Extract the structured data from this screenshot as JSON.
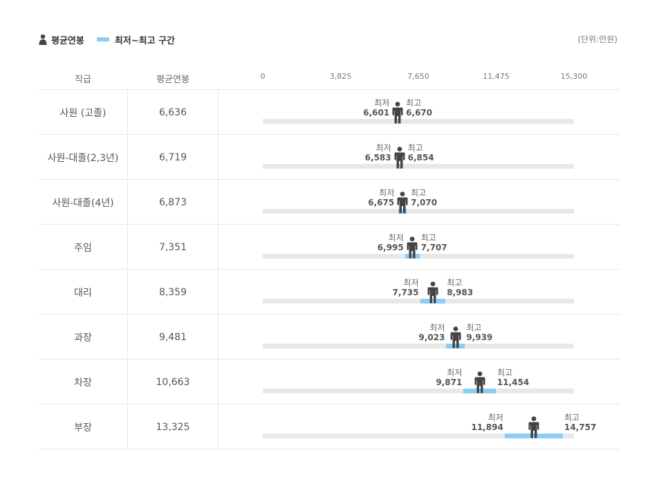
{
  "legend": {
    "avg_label": "평균연봉",
    "range_label": "최저~최고 구간",
    "unit": "(단위:만원)"
  },
  "header": {
    "rank": "직급",
    "avg": "평균연봉"
  },
  "caption_min": "최저",
  "caption_max": "최고",
  "colors": {
    "range": "#8ecbf5",
    "track": "#e8e8e8",
    "person": "#444444"
  },
  "chart_data": {
    "type": "range-bar",
    "xlim": [
      0,
      15300
    ],
    "ticks": [
      "0",
      "3,825",
      "7,650",
      "11,475",
      "15,300"
    ],
    "tick_values": [
      0,
      3825,
      7650,
      11475,
      15300
    ],
    "rows": [
      {
        "rank": "사원 (고졸)",
        "avg": 6636,
        "avg_text": "6,636",
        "min": 6601,
        "min_text": "6,601",
        "max": 6670,
        "max_text": "6,670"
      },
      {
        "rank": "사원-대졸(2,3년)",
        "avg": 6719,
        "avg_text": "6,719",
        "min": 6583,
        "min_text": "6,583",
        "max": 6854,
        "max_text": "6,854"
      },
      {
        "rank": "사원-대졸(4년)",
        "avg": 6873,
        "avg_text": "6,873",
        "min": 6675,
        "min_text": "6,675",
        "max": 7070,
        "max_text": "7,070"
      },
      {
        "rank": "주임",
        "avg": 7351,
        "avg_text": "7,351",
        "min": 6995,
        "min_text": "6,995",
        "max": 7707,
        "max_text": "7,707"
      },
      {
        "rank": "대리",
        "avg": 8359,
        "avg_text": "8,359",
        "min": 7735,
        "min_text": "7,735",
        "max": 8983,
        "max_text": "8,983"
      },
      {
        "rank": "과장",
        "avg": 9481,
        "avg_text": "9,481",
        "min": 9023,
        "min_text": "9,023",
        "max": 9939,
        "max_text": "9,939"
      },
      {
        "rank": "차장",
        "avg": 10663,
        "avg_text": "10,663",
        "min": 9871,
        "min_text": "9,871",
        "max": 11454,
        "max_text": "11,454"
      },
      {
        "rank": "부장",
        "avg": 13325,
        "avg_text": "13,325",
        "min": 11894,
        "min_text": "11,894",
        "max": 14757,
        "max_text": "14,757"
      }
    ]
  }
}
